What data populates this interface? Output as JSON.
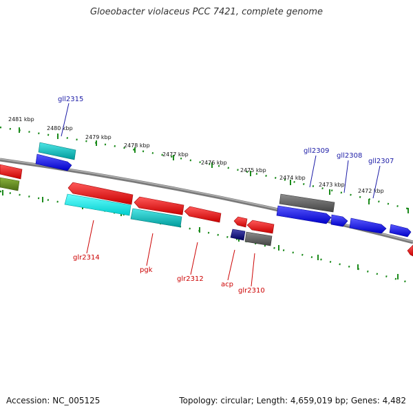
{
  "title": "Gloeobacter violaceus PCC 7421, complete genome",
  "footer": {
    "accession": "Accession: NC_005125",
    "topology": "Topology: circular; Length: 4,659,019 bp; Genes: 4,482"
  },
  "scale_labels": [
    "2481 kbp",
    "2480 kbp",
    "2479 kbp",
    "2478 kbp",
    "2477 kbp",
    "2476 kbp",
    "2475 kbp",
    "2474 kbp",
    "2473 kbp",
    "2472 kbp"
  ],
  "forward_gene_labels": [
    "gll2315",
    "gll2309",
    "gll2308",
    "gll2307"
  ],
  "reverse_gene_labels": [
    "glr2314",
    "pgk",
    "glr2312",
    "acp",
    "glr2310"
  ],
  "colors": {
    "forward": "#0000ee",
    "reverse": "#ee0000",
    "cyan": "#00c4c4",
    "gray": "#666666",
    "olive": "#6b8e23",
    "navy": "#000080",
    "tick": "#1a8a1a",
    "backbone": "#888888"
  }
}
